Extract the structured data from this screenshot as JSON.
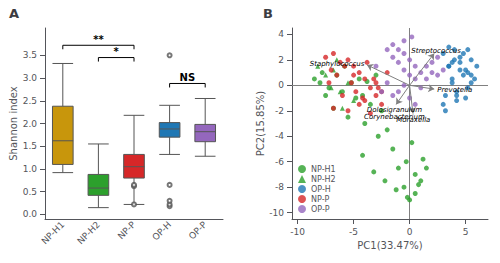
{
  "chart_data": [
    {
      "type": "boxplot",
      "title": "A",
      "ylabel": "Shannon index",
      "categories": [
        "NP-H1",
        "NP-H2",
        "NP-P",
        "OP-H",
        "OP-P"
      ],
      "colors": [
        "#C8960C",
        "#2CA02C",
        "#D62728",
        "#1F77B4",
        "#9467BD"
      ],
      "whisker_low": [
        0.92,
        0.15,
        0.22,
        1.32,
        1.28
      ],
      "q1": [
        1.1,
        0.42,
        0.8,
        1.7,
        1.6
      ],
      "median": [
        1.62,
        0.58,
        1.05,
        1.88,
        1.82
      ],
      "q3": [
        2.38,
        0.88,
        1.32,
        2.02,
        1.98
      ],
      "whisker_high": [
        3.32,
        1.55,
        2.18,
        2.4,
        2.55
      ],
      "fliers": [
        [],
        [],
        [
          0.22,
          0.62,
          0.65
        ],
        [
          0.18,
          0.22,
          0.3,
          0.65,
          3.5
        ],
        []
      ],
      "ylim": [
        -0.1,
        4.1
      ],
      "yticks": [
        {
          "value": 0.0,
          "label": "0.0"
        },
        0.5,
        {
          "value": 1.0,
          "label": "1.0"
        },
        1.5,
        {
          "value": 2.0,
          "label": "2.0"
        },
        2.5,
        {
          "value": 3.0,
          "label": "3.0"
        },
        3.5
      ],
      "grid": false,
      "annotations": [
        {
          "from": "NP-H1",
          "to": "NP-P",
          "y": 3.72,
          "label": "**"
        },
        {
          "from": "NP-H2",
          "to": "NP-P",
          "y": 3.45,
          "label": "*"
        },
        {
          "from": "OP-H",
          "to": "OP-P",
          "y": 2.88,
          "label": "NS"
        }
      ]
    },
    {
      "type": "scatter",
      "title": "B",
      "xlabel": "PC1(33.47%)",
      "ylabel": "PC2(15.85%)",
      "xlim": [
        -10.5,
        7.0
      ],
      "ylim": [
        -10.5,
        4.5
      ],
      "xticks": [
        -10,
        -5,
        0,
        5
      ],
      "yticks": [
        -10,
        -8,
        -6,
        -4,
        -2,
        0,
        2,
        4
      ],
      "grid": false,
      "legend": "lower left",
      "series": [
        {
          "name": "NP-H1",
          "color": "#2CA02C",
          "marker": "circle",
          "x": [
            -8.5,
            -7.8,
            -7.2,
            -6.5,
            -6.0,
            -5.8,
            -5.2,
            -4.8,
            -4.5,
            -4.2,
            -3.8,
            -3.5,
            -3.0,
            -2.5,
            -2.0,
            -1.5,
            -1.0,
            -0.5,
            0.0,
            0.5,
            1.0,
            -0.3,
            0.2,
            -2.8,
            -4.0,
            -5.5,
            -6.8,
            -7.5,
            -8.0,
            -4.2,
            -3.2,
            -2.2,
            -1.2,
            -0.2,
            0.8,
            1.5,
            0.5,
            1.2
          ],
          "y": [
            0.5,
            1.0,
            -0.2,
            0.8,
            -0.5,
            1.5,
            0.2,
            -1.0,
            0.5,
            -0.8,
            0.3,
            -1.5,
            0.8,
            -2.0,
            -3.5,
            -5.0,
            -6.5,
            -8.0,
            -9.0,
            -8.5,
            -7.5,
            -6.0,
            -4.5,
            -4.0,
            -3.0,
            -2.5,
            -1.8,
            -0.8,
            0.2,
            -5.5,
            -6.8,
            -7.5,
            -8.2,
            -8.8,
            -7.8,
            -6.5,
            -7.0,
            -5.8
          ]
        },
        {
          "name": "NP-H2",
          "color": "#2CA02C",
          "marker": "triangle",
          "x": [
            -8.2,
            -7.5,
            -6.8,
            -6.2,
            -5.5,
            -5.0,
            -6.0,
            -7.0,
            -6.5
          ],
          "y": [
            1.5,
            0.8,
            1.2,
            -0.5,
            0.2,
            -1.2,
            -1.8,
            -0.2,
            2.0
          ]
        },
        {
          "name": "OP-H",
          "color": "#1F77B4",
          "marker": "circle",
          "x": [
            3.5,
            4.0,
            4.5,
            5.0,
            5.5,
            6.0,
            5.8,
            5.2,
            4.8,
            4.2,
            3.8,
            4.5,
            5.5,
            3.2,
            3.0,
            4.8,
            5.2,
            3.5,
            4.0,
            5.0,
            3.8,
            4.2,
            3.2,
            5.2,
            3.0,
            4.5,
            5.5,
            3.8,
            4.2,
            3.5
          ],
          "y": [
            1.5,
            2.0,
            1.8,
            1.2,
            0.8,
            1.5,
            0.5,
            -0.2,
            0.8,
            -0.5,
            1.8,
            2.2,
            0.2,
            -0.8,
            -1.5,
            2.5,
            1.0,
            3.0,
            2.8,
            -1.0,
            0.2,
            -1.2,
            -2.0,
            2.8,
            2.5,
            1.2,
            2.0,
            0.5,
            -0.8,
            1.5
          ]
        },
        {
          "name": "NP-P",
          "color": "#D62728",
          "marker": "circle",
          "x": [
            -7.5,
            -6.8,
            -6.2,
            -5.5,
            -5.0,
            -4.5,
            -4.0,
            -3.5,
            -3.0,
            -2.5,
            -7.0,
            -6.5,
            -5.8,
            -5.2,
            -4.8,
            -4.2,
            -3.8,
            -3.2,
            -2.8,
            -7.2,
            -6.0,
            -5.0,
            -4.0,
            -3.0,
            -2.0,
            -6.8,
            -5.5,
            -4.5,
            -3.5,
            -2.5
          ],
          "y": [
            2.2,
            2.5,
            1.8,
            2.0,
            1.5,
            1.0,
            0.5,
            -0.2,
            -0.8,
            -1.5,
            1.2,
            0.8,
            1.5,
            0.2,
            -0.5,
            -1.0,
            1.8,
            0.5,
            -0.2,
            0.2,
            -0.8,
            0.8,
            -1.2,
            0.2,
            1.0,
            -1.8,
            -2.0,
            -1.5,
            -2.2,
            -0.5
          ]
        },
        {
          "name": "OP-P",
          "color": "#9467BD",
          "marker": "circle",
          "x": [
            -1.5,
            -1.0,
            -0.5,
            0.0,
            0.5,
            1.0,
            1.5,
            2.0,
            2.5,
            3.0,
            -2.0,
            -1.5,
            -1.0,
            -0.5,
            0.0,
            0.5,
            1.0,
            1.5,
            2.0,
            2.5,
            -2.5,
            -2.0,
            -1.5,
            -1.0,
            -0.5,
            0.0,
            0.5,
            -3.0,
            -0.5,
            0.2
          ],
          "y": [
            3.2,
            2.8,
            2.5,
            2.0,
            1.5,
            1.0,
            0.5,
            1.8,
            2.2,
            1.2,
            2.8,
            2.2,
            1.8,
            1.2,
            0.8,
            0.5,
            -0.2,
            1.5,
            1.0,
            0.8,
            -0.5,
            0.2,
            -0.8,
            -0.5,
            0.0,
            -1.0,
            -1.5,
            1.5,
            3.5,
            3.8
          ]
        }
      ],
      "arrows": [
        {
          "x": -3.8,
          "y": 1.6,
          "label": "Staphylococcus"
        },
        {
          "x": 2.2,
          "y": 2.5,
          "label": "Streptococcus"
        },
        {
          "x": 2.2,
          "y": -0.3,
          "label": "Prevotella"
        },
        {
          "x": -1.2,
          "y": -1.5,
          "label": "Dolosigranulum\nCorynebacterium"
        },
        {
          "x": 0.3,
          "y": -2.2,
          "label": "Moraxella"
        }
      ]
    }
  ]
}
